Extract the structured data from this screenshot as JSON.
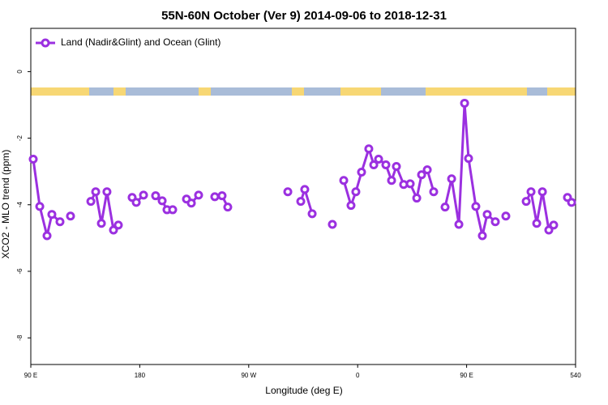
{
  "chart_data": {
    "type": "line",
    "title": "55N-60N October (Ver 9)   2014-09-06 to 2018-12-31",
    "xlabel": "Longitude (deg E)",
    "ylabel": "XCO2 - MLO trend (ppm)",
    "xlim": [
      90,
      540
    ],
    "ylim": [
      1.3,
      -8.8
    ],
    "xticks": [
      {
        "value": 90,
        "label": "90 E"
      },
      180,
      {
        "value": 270,
        "label": "90 W"
      },
      {
        "value": 360,
        "label": "0"
      },
      {
        "value": 450,
        "label": "90 E"
      },
      540
    ],
    "yticks": [
      0,
      -2,
      -4,
      -6,
      -8
    ],
    "grid": false,
    "legend": "top-left",
    "series": [
      {
        "name": "Land (Nadir&Glint) and Ocean (Glint)",
        "color": "#9b30e0",
        "x": [
          92.0,
          97.4,
          103.4,
          107.4,
          114.1,
          null,
          122.8,
          null,
          139.6,
          143.6,
          148.3,
          152.9,
          158.3,
          162.3,
          null,
          173.7,
          177.1,
          183.1,
          null,
          193.1,
          198.5,
          202.5,
          207.2,
          null,
          218.6,
          222.6,
          228.6,
          null,
          242.0,
          248.0,
          252.7,
          null,
          302.3,
          null,
          313.0,
          316.3,
          322.4,
          null,
          339.1,
          null,
          348.5,
          354.5,
          358.5,
          363.2,
          369.2,
          373.3,
          377.3,
          383.3,
          388.0,
          392.0,
          398.0,
          403.4,
          408.8,
          412.8,
          417.5,
          422.8,
          null,
          432.2,
          437.6,
          443.6,
          448.3,
          451.6,
          457.6,
          463.0,
          467.0,
          473.7,
          null,
          482.4,
          null,
          499.2,
          503.2,
          507.9,
          512.6,
          517.9,
          521.9,
          null,
          533.3,
          536.7
        ],
        "values": [
          -2.63,
          -4.05,
          -4.93,
          -4.29,
          -4.51,
          null,
          -4.34,
          null,
          -3.9,
          -3.61,
          -4.56,
          -3.61,
          -4.76,
          -4.61,
          null,
          -3.78,
          -3.93,
          -3.71,
          null,
          -3.73,
          -3.88,
          -4.15,
          -4.15,
          null,
          -3.83,
          -3.95,
          -3.71,
          null,
          -3.76,
          -3.73,
          -4.07,
          null,
          -3.61,
          null,
          -3.9,
          -3.54,
          -4.27,
          null,
          -4.59,
          null,
          -3.27,
          -4.02,
          -3.61,
          -3.02,
          -2.32,
          -2.8,
          -2.63,
          -2.8,
          -3.27,
          -2.85,
          -3.39,
          -3.37,
          -3.8,
          -3.1,
          -2.95,
          -3.61,
          null,
          -4.07,
          -3.22,
          -4.59,
          -0.95,
          -2.61,
          -4.05,
          -4.93,
          -4.29,
          -4.51,
          null,
          -4.34,
          null,
          -3.9,
          -3.61,
          -4.56,
          -3.61,
          -4.76,
          -4.61,
          null,
          -3.78,
          -3.93
        ]
      }
    ]
  }
}
